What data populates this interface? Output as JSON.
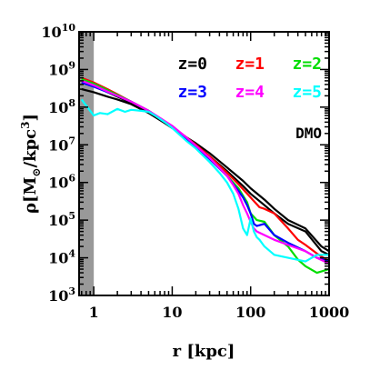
{
  "chart_data": {
    "type": "line",
    "xscale": "log",
    "yscale": "log",
    "xlim": [
      0.65,
      1000
    ],
    "ylim": [
      1000,
      10000000000
    ],
    "shaded_region": [
      0.65,
      1.0
    ],
    "shaded_color": "#999999",
    "x_ticks": [
      {
        "value": 1,
        "label": "1"
      },
      {
        "value": 10,
        "label": "10"
      },
      {
        "value": 100,
        "label": "100"
      },
      {
        "value": 1000,
        "label": "1000"
      }
    ],
    "y_ticks": [
      {
        "value": 1000,
        "base": "10",
        "exp": "3"
      },
      {
        "value": 10000,
        "base": "10",
        "exp": "4"
      },
      {
        "value": 100000,
        "base": "10",
        "exp": "5"
      },
      {
        "value": 1000000,
        "base": "10",
        "exp": "6"
      },
      {
        "value": 10000000,
        "base": "10",
        "exp": "7"
      },
      {
        "value": 100000000,
        "base": "10",
        "exp": "8"
      },
      {
        "value": 1000000000,
        "base": "10",
        "exp": "9"
      },
      {
        "value": 10000000000,
        "base": "10",
        "exp": "10"
      }
    ],
    "xlabel": "r [kpc]",
    "ylabel": {
      "main": "ρ[M",
      "sub": "⊙",
      "rest": "/kpc",
      "sup": "3",
      "close": "]"
    },
    "annotation": "DMO",
    "legend_position": "top-right",
    "series": [
      {
        "name": "z=0",
        "color": "#000000",
        "x": [
          0.7,
          1,
          1.5,
          2,
          3,
          5,
          8,
          10,
          15,
          20,
          30,
          50,
          80,
          100,
          150,
          200,
          300,
          500,
          800,
          1000
        ],
        "y": [
          300000000,
          250000000,
          190000000,
          160000000,
          120000000,
          70000000,
          38000000,
          28000000,
          15000000,
          10000000,
          5000000,
          2000000,
          800000,
          500000,
          250000,
          150000,
          80000,
          50000,
          15000,
          12000
        ]
      },
      {
        "name": "z=0 (2)",
        "color": "#000000",
        "x": [
          0.7,
          1,
          1.5,
          2,
          3,
          5,
          8,
          10,
          15,
          20,
          30,
          50,
          80,
          100,
          150,
          200,
          300,
          500,
          800,
          1000
        ],
        "y": [
          500000000,
          380000000,
          250000000,
          190000000,
          130000000,
          75000000,
          40000000,
          30000000,
          16000000,
          11000000,
          6000000,
          2500000,
          1100000,
          700000,
          350000,
          200000,
          100000,
          60000,
          20000,
          15000
        ]
      },
      {
        "name": "z=1",
        "color": "#ff0000",
        "x": [
          0.7,
          1,
          1.5,
          2,
          3,
          5,
          8,
          10,
          15,
          20,
          30,
          50,
          70,
          100,
          130,
          150,
          200,
          300,
          400,
          500,
          700,
          1000
        ],
        "y": [
          600000000,
          450000000,
          300000000,
          220000000,
          140000000,
          80000000,
          42000000,
          30000000,
          16000000,
          10000000,
          5000000,
          1800000,
          900000,
          400000,
          220000,
          200000,
          150000,
          60000,
          30000,
          22000,
          13000,
          8000
        ]
      },
      {
        "name": "z=2",
        "color": "#00dd00",
        "x": [
          0.7,
          1,
          1.5,
          2,
          3,
          5,
          8,
          10,
          15,
          20,
          30,
          50,
          70,
          90,
          100,
          120,
          150,
          200,
          300,
          400,
          500,
          700,
          1000
        ],
        "y": [
          550000000,
          420000000,
          280000000,
          210000000,
          140000000,
          80000000,
          42000000,
          30000000,
          15000000,
          9000000,
          4500000,
          1500000,
          700000,
          300000,
          150000,
          100000,
          90000,
          40000,
          20000,
          9000,
          6000,
          4000,
          5000
        ]
      },
      {
        "name": "z=3",
        "color": "#0000ff",
        "x": [
          0.7,
          1,
          1.5,
          2,
          3,
          5,
          8,
          10,
          15,
          20,
          30,
          50,
          60,
          70,
          80,
          90,
          100,
          110,
          120,
          150,
          200,
          300,
          500,
          700,
          1000
        ],
        "y": [
          450000000,
          350000000,
          250000000,
          200000000,
          140000000,
          80000000,
          42000000,
          30000000,
          15000000,
          9000000,
          4200000,
          1500000,
          900000,
          600000,
          400000,
          250000,
          150000,
          80000,
          70000,
          80000,
          40000,
          25000,
          15000,
          10000,
          8000
        ]
      },
      {
        "name": "z=4",
        "color": "#ff00ff",
        "x": [
          0.7,
          1,
          1.5,
          2,
          3,
          5,
          8,
          10,
          15,
          20,
          30,
          50,
          60,
          70,
          80,
          90,
          100,
          110,
          120,
          150,
          200,
          300,
          500,
          700,
          1000
        ],
        "y": [
          500000000,
          380000000,
          260000000,
          200000000,
          140000000,
          80000000,
          43000000,
          32000000,
          16000000,
          9500000,
          4500000,
          1500000,
          850000,
          500000,
          250000,
          150000,
          90000,
          60000,
          50000,
          40000,
          30000,
          22000,
          15000,
          10000,
          7000
        ]
      },
      {
        "name": "z=5",
        "color": "#00ffff",
        "x": [
          0.7,
          0.75,
          0.8,
          0.9,
          1,
          1.2,
          1.5,
          2,
          2.5,
          3,
          4,
          5,
          6,
          8,
          10,
          15,
          20,
          30,
          40,
          50,
          60,
          70,
          80,
          90,
          100,
          110,
          120,
          130,
          150,
          200,
          300,
          500,
          700,
          1000
        ],
        "y": [
          160000000,
          130000000,
          110000000,
          80000000,
          60000000,
          70000000,
          65000000,
          90000000,
          75000000,
          85000000,
          80000000,
          75000000,
          60000000,
          40000000,
          28000000,
          13000000,
          8000000,
          3500000,
          1800000,
          1000000,
          500000,
          200000,
          60000,
          40000,
          110000,
          50000,
          35000,
          30000,
          20000,
          12000,
          10000,
          8000,
          12000,
          12000
        ]
      }
    ],
    "legend": [
      {
        "label": "z=0",
        "color": "#000000"
      },
      {
        "label": "z=1",
        "color": "#ff0000"
      },
      {
        "label": "z=2",
        "color": "#00dd00"
      },
      {
        "label": "z=3",
        "color": "#0000ff"
      },
      {
        "label": "z=4",
        "color": "#ff00ff"
      },
      {
        "label": "z=5",
        "color": "#00ffff"
      }
    ]
  }
}
